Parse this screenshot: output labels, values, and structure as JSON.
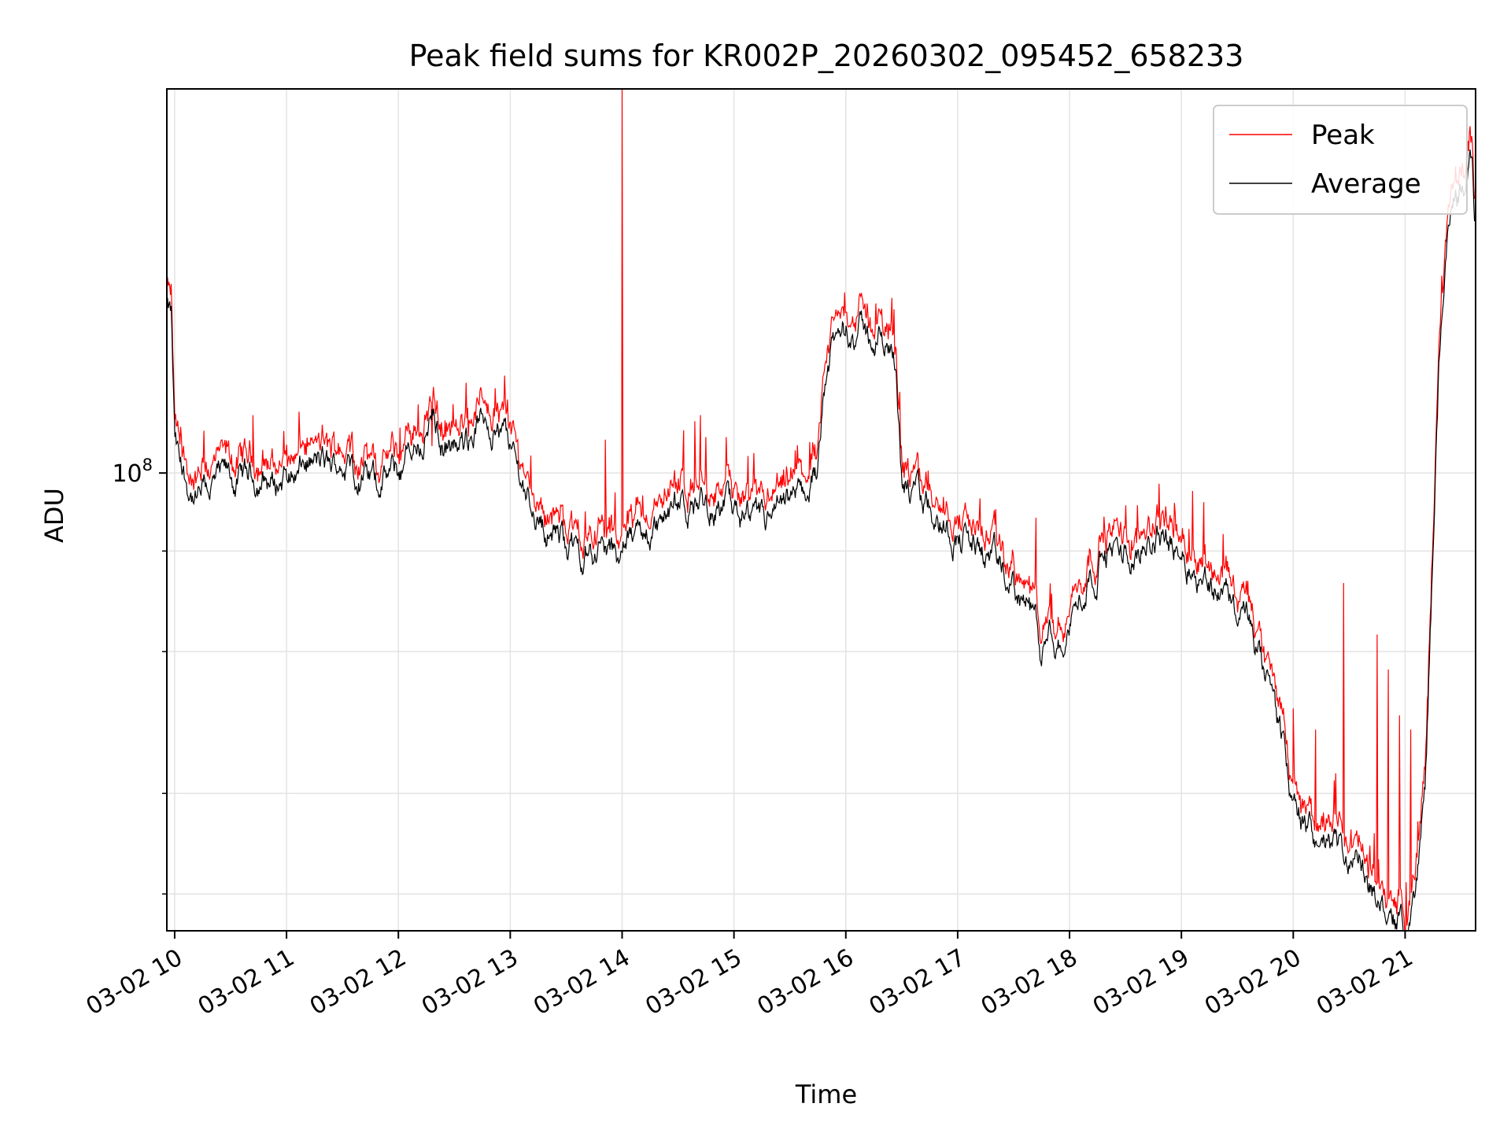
{
  "chart_data": {
    "type": "line",
    "title": "Peak field sums for KR002P_20260302_095452_658233",
    "xlabel": "Time",
    "ylabel": "ADU",
    "yscale": "log",
    "ylim": [
      27000000,
      300000000
    ],
    "xlim": [
      9.93,
      21.63
    ],
    "grid": true,
    "legend_position": "top-right",
    "x_tick_values": [
      10,
      11,
      12,
      13,
      14,
      15,
      16,
      17,
      18,
      19,
      20,
      21
    ],
    "x_tick_labels": [
      "03-02 10",
      "03-02 11",
      "03-02 12",
      "03-02 13",
      "03-02 14",
      "03-02 15",
      "03-02 16",
      "03-02 17",
      "03-02 18",
      "03-02 19",
      "03-02 20",
      "03-02 21"
    ],
    "y_major_tick": {
      "value": 100000000,
      "base": "10",
      "exponent": "8"
    },
    "y_minor_ticks": [
      30000000,
      40000000,
      60000000,
      80000000
    ],
    "series": [
      {
        "name": "Average",
        "color": "#000000",
        "x": [
          9.93,
          9.97,
          10.0,
          10.05,
          10.12,
          10.2,
          10.3,
          10.45,
          10.55,
          10.7,
          10.9,
          11.0,
          11.1,
          11.2,
          11.3,
          11.4,
          11.5,
          11.6,
          11.8,
          11.9,
          12.0,
          12.2,
          12.3,
          12.4,
          12.55,
          12.7,
          12.8,
          12.95,
          13.0,
          13.1,
          13.2,
          13.3,
          13.4,
          13.5,
          13.6,
          13.7,
          13.8,
          13.9,
          13.95,
          14.0,
          14.1,
          14.25,
          14.4,
          14.55,
          14.7,
          14.85,
          14.95,
          15.05,
          15.2,
          15.35,
          15.45,
          15.6,
          15.62,
          15.68,
          15.75,
          15.8,
          15.9,
          16.0,
          16.05,
          16.1,
          16.2,
          16.3,
          16.4,
          16.45,
          16.5,
          16.52,
          16.6,
          16.75,
          16.85,
          16.95,
          17.05,
          17.2,
          17.3,
          17.4,
          17.5,
          17.6,
          17.7,
          17.75,
          17.8,
          17.85,
          17.9,
          18.0,
          18.1,
          18.2,
          18.3,
          18.35,
          18.5,
          18.65,
          18.8,
          18.9,
          19.0,
          19.1,
          19.2,
          19.4,
          19.6,
          19.7,
          19.8,
          19.9,
          19.95,
          20.0,
          20.1,
          20.2,
          20.35,
          20.5,
          20.6,
          20.7,
          20.8,
          20.9,
          21.0,
          21.1,
          21.18,
          21.22,
          21.26,
          21.3,
          21.35,
          21.4,
          21.45,
          21.5,
          21.55,
          21.6,
          21.62
        ],
        "y": [
          160000000,
          155000000,
          108000000,
          100000000,
          96000000,
          92000000,
          96000000,
          98000000,
          97000000,
          99000000,
          97000000,
          100000000,
          101000000,
          103000000,
          102000000,
          101000000,
          103000000,
          101000000,
          97000000,
          99000000,
          100000000,
          110000000,
          118000000,
          109000000,
          105000000,
          115000000,
          117000000,
          112000000,
          108000000,
          98000000,
          92000000,
          86000000,
          84000000,
          82000000,
          80000000,
          80000000,
          81000000,
          79000000,
          79000000,
          81000000,
          83000000,
          85000000,
          88000000,
          90000000,
          92000000,
          92000000,
          90000000,
          87000000,
          85000000,
          87000000,
          89000000,
          93000000,
          94000000,
          96000000,
          103000000,
          132000000,
          144000000,
          150000000,
          152000000,
          150000000,
          148000000,
          146000000,
          144000000,
          142000000,
          100000000,
          97000000,
          93000000,
          90000000,
          87000000,
          85000000,
          83000000,
          80000000,
          78000000,
          75000000,
          72000000,
          69000000,
          65000000,
          58000000,
          60000000,
          62000000,
          61000000,
          65000000,
          70000000,
          76000000,
          79000000,
          80000000,
          79000000,
          82000000,
          84000000,
          83000000,
          80000000,
          77000000,
          75000000,
          70000000,
          65000000,
          58000000,
          52000000,
          46000000,
          42000000,
          38000000,
          36000000,
          35000000,
          34000000,
          33000000,
          32000000,
          30000000,
          29000000,
          28000000,
          27500000,
          30000000,
          40000000,
          60000000,
          90000000,
          130000000,
          180000000,
          200000000,
          215000000,
          225000000,
          235000000,
          245000000,
          210000000
        ],
        "noise_amplitude": 0.025
      },
      {
        "name": "Peak",
        "color": "#ff0000",
        "spikes": [
          {
            "x": 14.0,
            "y": 300000000
          },
          {
            "x": 10.7,
            "y": 118000000
          },
          {
            "x": 11.25,
            "y": 110000000
          },
          {
            "x": 12.3,
            "y": 108000000
          },
          {
            "x": 12.55,
            "y": 112000000
          },
          {
            "x": 13.85,
            "y": 110000000
          },
          {
            "x": 14.55,
            "y": 113000000
          },
          {
            "x": 14.65,
            "y": 116000000
          },
          {
            "x": 14.7,
            "y": 118000000
          },
          {
            "x": 15.4,
            "y": 96000000
          },
          {
            "x": 16.65,
            "y": 98000000
          },
          {
            "x": 17.2,
            "y": 93000000
          },
          {
            "x": 17.7,
            "y": 88000000
          },
          {
            "x": 18.8,
            "y": 97000000
          },
          {
            "x": 19.1,
            "y": 95000000
          },
          {
            "x": 19.2,
            "y": 92000000
          },
          {
            "x": 20.0,
            "y": 51000000
          },
          {
            "x": 20.2,
            "y": 48000000
          },
          {
            "x": 20.45,
            "y": 73000000
          },
          {
            "x": 20.75,
            "y": 63000000
          },
          {
            "x": 20.85,
            "y": 57000000
          },
          {
            "x": 20.95,
            "y": 50000000
          },
          {
            "x": 21.05,
            "y": 48000000
          }
        ],
        "offset_ratio": 1.04
      }
    ]
  }
}
